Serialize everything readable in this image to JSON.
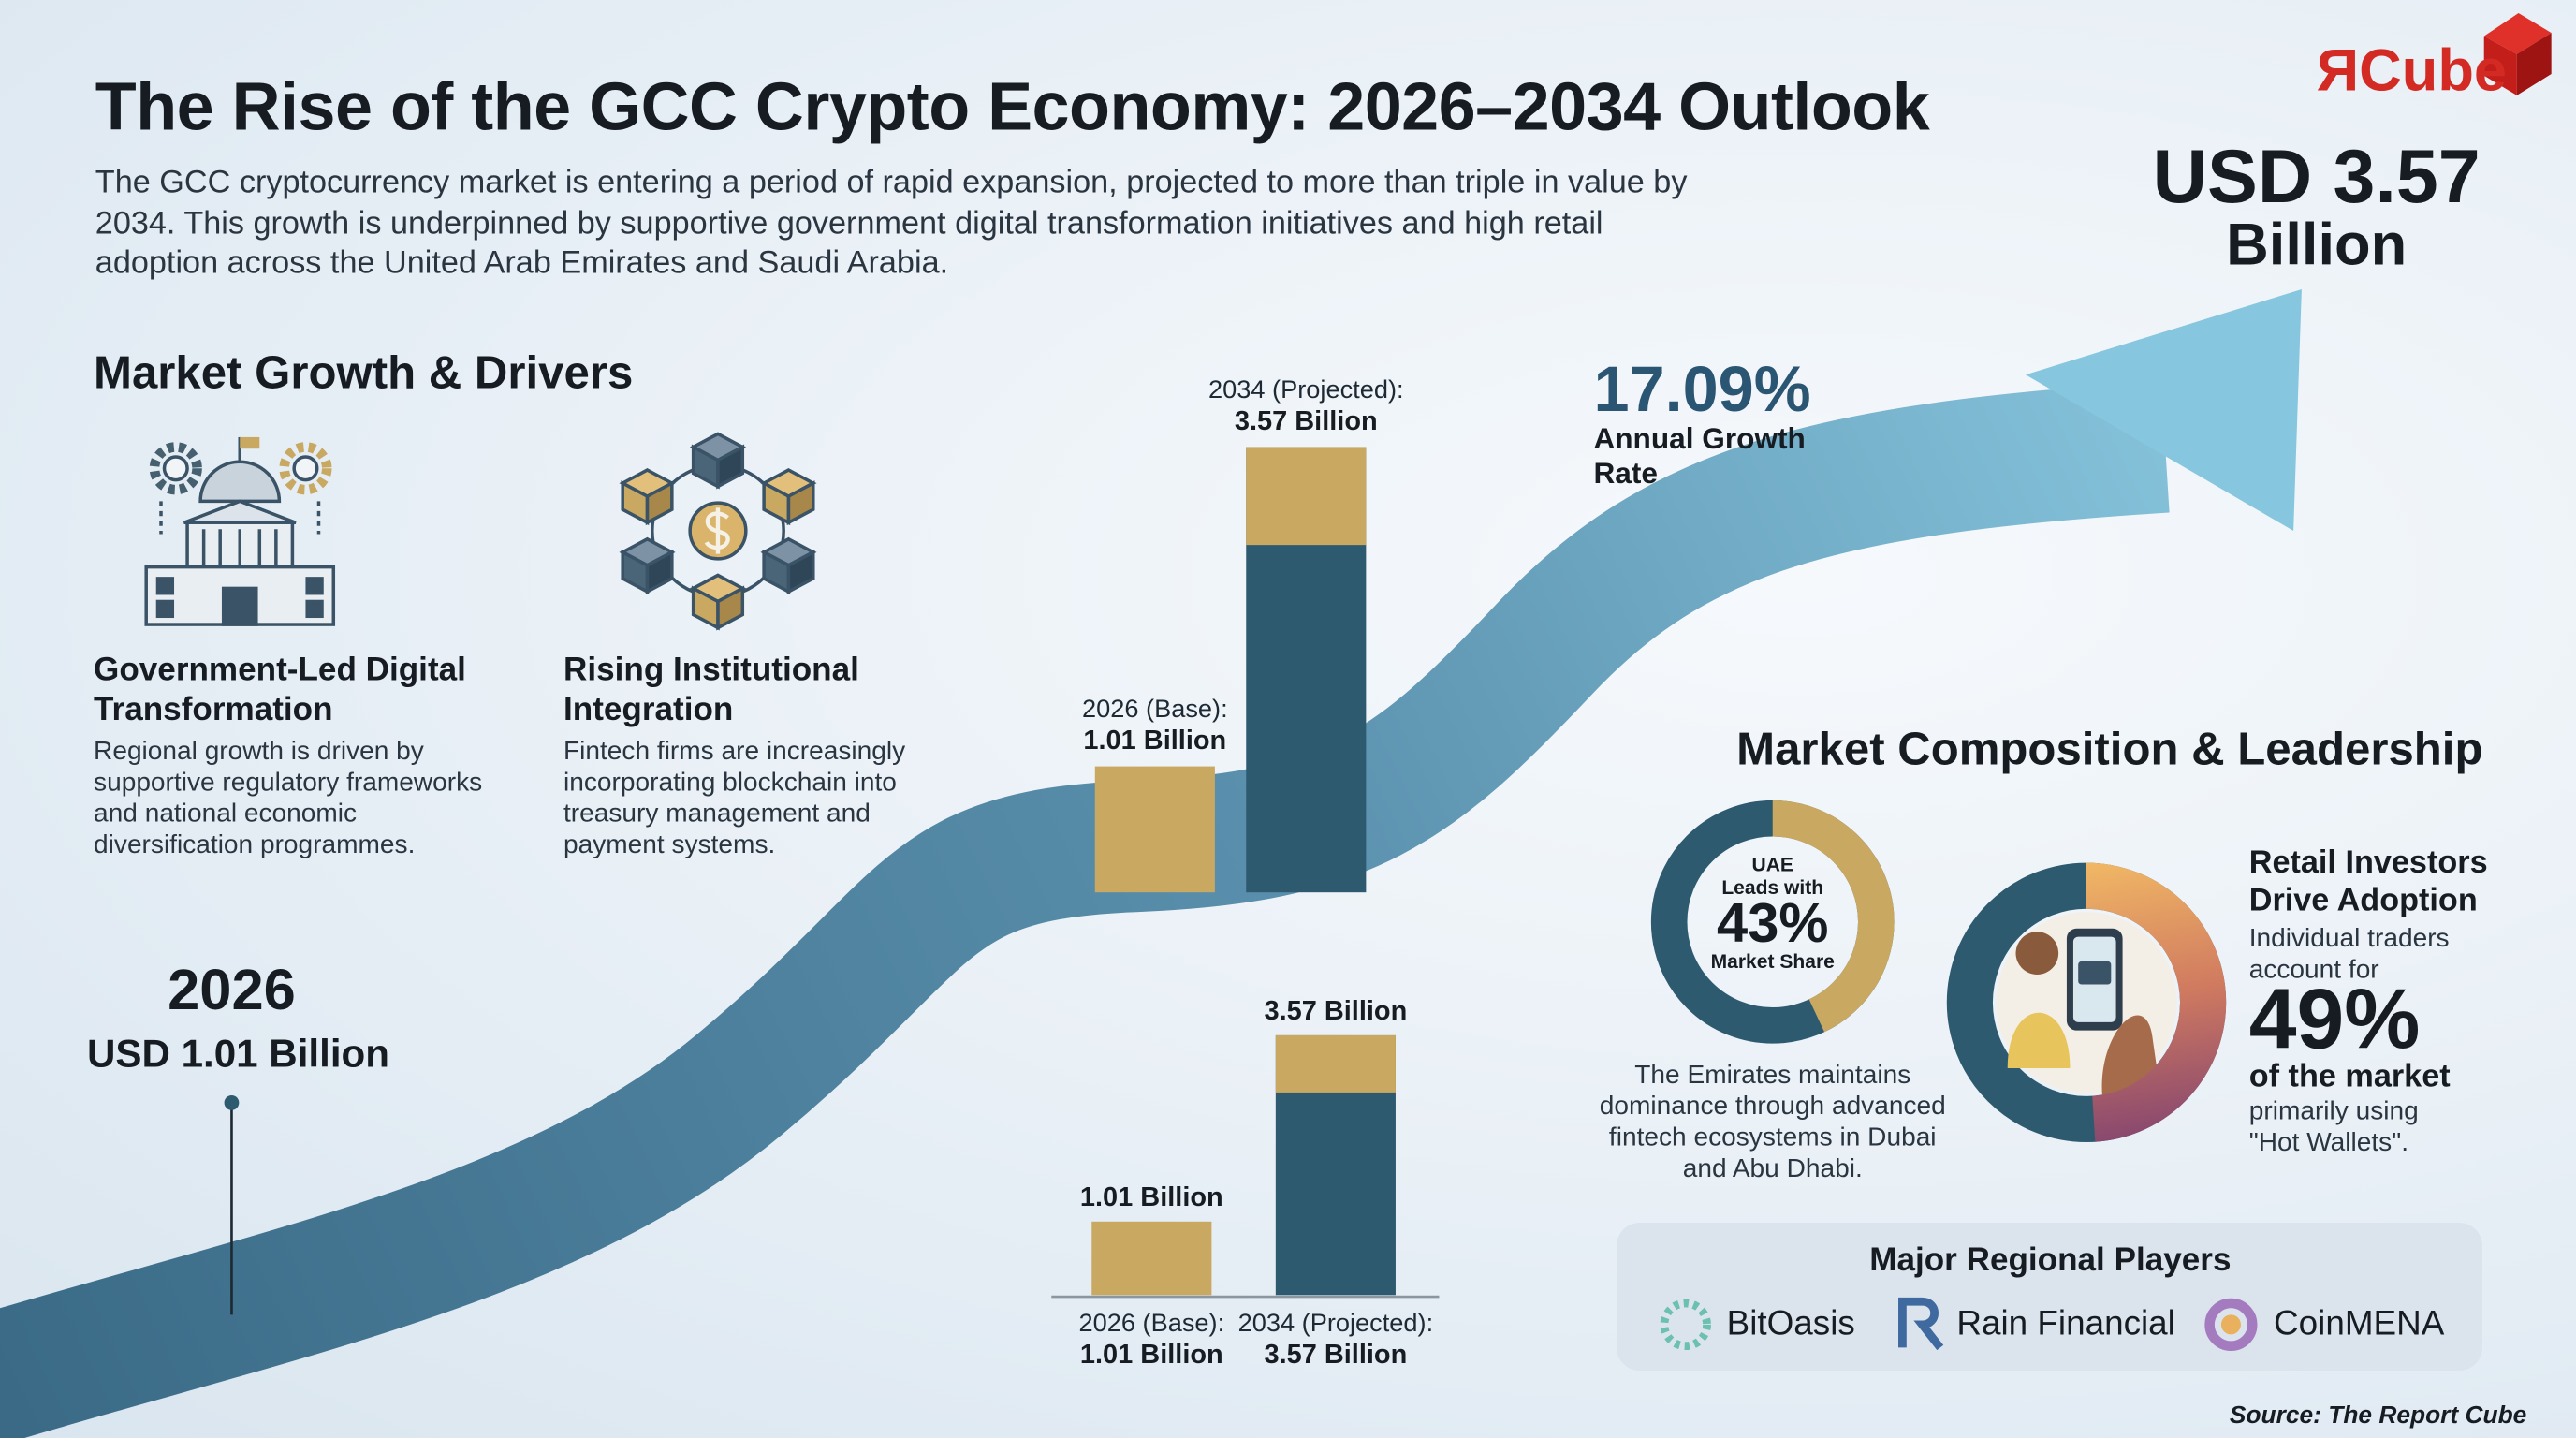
{
  "logo": {
    "mark": "Я",
    "name": "Cube"
  },
  "header": {
    "title": "The Rise of the GCC Crypto Economy: 2026–2034 Outlook",
    "description": "The GCC cryptocurrency market is entering a period of rapid expansion, projected to more than triple in value by 2034. This growth is underpinned by supportive government digital transformation initiatives and high retail adoption across the United Arab Emirates and Saudi Arabia."
  },
  "headline": {
    "value": "USD 3.57",
    "unit": "Billion"
  },
  "growth": {
    "rate": "17.09%",
    "label": "Annual Growth Rate"
  },
  "drivers": {
    "heading": "Market Growth & Drivers",
    "items": [
      {
        "title": "Government-Led Digital Transformation",
        "text": "Regional growth is driven by supportive regulatory frameworks and national economic diversification programmes."
      },
      {
        "title": "Rising Institutional Integration",
        "text": "Fintech firms are increasingly incorporating blockchain into treasury management and payment systems."
      }
    ]
  },
  "start": {
    "year": "2026",
    "value": "USD 1.01 Billion"
  },
  "composition": {
    "heading": "Market Composition & Leadership",
    "uae": {
      "country": "UAE",
      "lead": "Leads with",
      "label": "Market Share",
      "text": "The Emirates maintains dominance through advanced fintech ecosystems in Dubai and Abu Dhabi."
    },
    "retail": {
      "title": "Retail Investors Drive Adoption",
      "intro": "Individual traders account for",
      "suffix": "of the market",
      "note": "primarily using \"Hot Wallets\"."
    }
  },
  "players": {
    "heading": "Major Regional Players",
    "names": [
      "BitOasis",
      "Rain Financial",
      "CoinMENA"
    ]
  },
  "source": "Source: The Report Cube",
  "chart_data": [
    {
      "type": "bar",
      "categories": [
        "2026 (Base):",
        "2034 (Projected):"
      ],
      "values": [
        1.01,
        3.57
      ],
      "value_labels": [
        "1.01 Billion",
        "3.57 Billion"
      ],
      "colors": [
        "#c9a862",
        "#2e5a70"
      ]
    },
    {
      "type": "bar",
      "categories": [
        "2026 (Base):",
        "2034 (Projected):"
      ],
      "values": [
        1.01,
        3.57
      ],
      "value_labels": [
        "1.01 Billion",
        "3.57 Billion"
      ],
      "colors": [
        "#c9a862",
        "#2e5a70"
      ]
    },
    {
      "type": "donut",
      "values": [
        43
      ],
      "value_labels": [
        "43%"
      ],
      "color": "#c9a862",
      "track": "#2e5a70"
    },
    {
      "type": "donut",
      "values": [
        49
      ],
      "value_labels": [
        "49%"
      ],
      "color": "#e9a85e",
      "track": "#2e5a70"
    }
  ]
}
